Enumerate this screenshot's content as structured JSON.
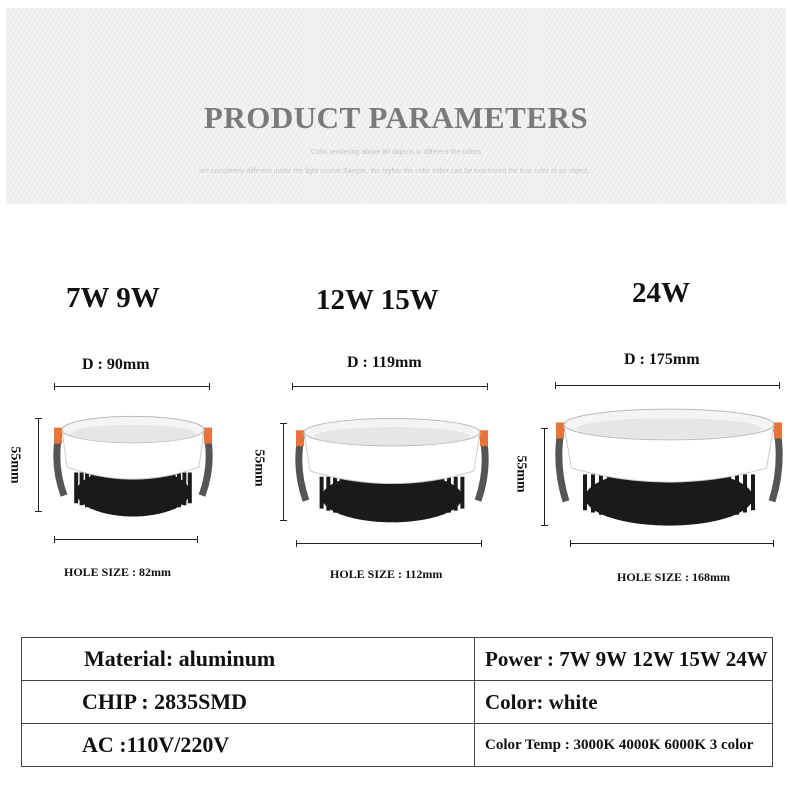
{
  "banner": {
    "title": "PRODUCT PARAMETERS",
    "subtitle_line1": "Color rendering above 90 objects in different the colors",
    "subtitle_line2": "are completely different under the light source.Sample, the higher the color index can be expressed the true color of an object..."
  },
  "products": [
    {
      "watts": "7W 9W",
      "diameter": "D : 90mm",
      "height": "55mm",
      "hole": "HOLE SIZE : 82mm"
    },
    {
      "watts": "12W 15W",
      "diameter": "D : 119mm",
      "height": "55mm",
      "hole": "HOLE SIZE : 112mm"
    },
    {
      "watts": "24W",
      "diameter": "D : 175mm",
      "height": "55mm",
      "hole": "HOLE SIZE : 168mm"
    }
  ],
  "specs": {
    "material": "Material: aluminum",
    "power": "Power : 7W 9W  12W 15W 24W",
    "chip": "CHIP : 2835SMD",
    "color": "Color: white",
    "ac": "AC :110V/220V",
    "color_temp": "Color Temp : 3000K  4000K  6000K  3 color"
  },
  "colors": {
    "clip": "#e8743a",
    "heatsink": "#1a1a1a",
    "body": "#ffffff"
  }
}
